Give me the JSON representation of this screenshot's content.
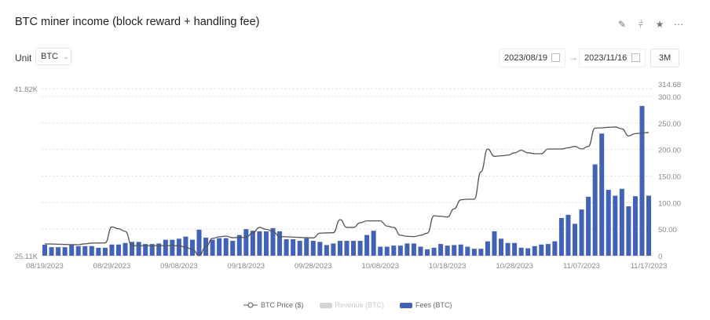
{
  "header": {
    "title": "BTC miner income (block reward + handling fee)",
    "icons": [
      "edit-icon",
      "split-icon",
      "star-icon",
      "more-icon"
    ]
  },
  "controls": {
    "unit_label": "Unit",
    "unit_value": "BTC",
    "start_date": "2023/08/19",
    "end_date": "2023/11/16",
    "range_button": "3M"
  },
  "legend": {
    "price": "BTC Price ($)",
    "revenue": "Revenue (BTC)",
    "fees": "Fees (BTC)"
  },
  "colors": {
    "fees": "#4262b8",
    "price": "#555555",
    "revenue_disabled": "#d4d4d4"
  },
  "chart_data": {
    "type": "bar+line",
    "grid": true,
    "legend_position": "bottom",
    "x_tick_labels": [
      "08/19/2023",
      "08/29/2023",
      "09/08/2023",
      "09/18/2023",
      "09/28/2023",
      "10/08/2023",
      "10/18/2023",
      "10/28/2023",
      "11/07/2023",
      "11/17/2023"
    ],
    "x_range": [
      "2023-08-19",
      "2023-11-17"
    ],
    "left_axis": {
      "min_label": "25.11K",
      "max_label": "41.82K",
      "ylim": [
        25110,
        41820
      ]
    },
    "right_axis": {
      "ylim": [
        0,
        314.68
      ],
      "tick_labels": [
        "0",
        "50.00",
        "100.00",
        "150.00",
        "200.00",
        "250.00",
        "300.00",
        "314.68"
      ]
    },
    "series": [
      {
        "name": "Fees (BTC)",
        "type": "bar",
        "axis": "right",
        "values": [
          20.6,
          16,
          16,
          16,
          21,
          18,
          18,
          18,
          15,
          15,
          21,
          21,
          24,
          26,
          26,
          22,
          22,
          23,
          30,
          30,
          32,
          36,
          30,
          49,
          34,
          30,
          33,
          33,
          28,
          39,
          50,
          47,
          46,
          46,
          52,
          46,
          31,
          31,
          28,
          33,
          28,
          26,
          20,
          23,
          28,
          28,
          28,
          28,
          39,
          47,
          17,
          17,
          19,
          19,
          23,
          23,
          17,
          12,
          15,
          22,
          19,
          20,
          21,
          17,
          13,
          13,
          27,
          46,
          32,
          24,
          24,
          15,
          14,
          18,
          21,
          22,
          27,
          71,
          77,
          60,
          87,
          111,
          172,
          230,
          124,
          113,
          126,
          93,
          112,
          282,
          113
        ]
      },
      {
        "name": "BTC Price ($)",
        "type": "line",
        "axis": "left",
        "values": [
          26290,
          26280,
          26260,
          26240,
          26220,
          26210,
          26300,
          26370,
          26380,
          26390,
          27990,
          27800,
          27540,
          26110,
          26110,
          26110,
          26110,
          26110,
          26110,
          26110,
          26110,
          25950,
          25740,
          25110,
          26000,
          26840,
          27000,
          27070,
          26910,
          26930,
          26940,
          27400,
          27940,
          27750,
          27540,
          27020,
          27000,
          26970,
          26940,
          26910,
          26890,
          27360,
          27390,
          27410,
          28720,
          27940,
          27940,
          28400,
          28590,
          28590,
          28590,
          28070,
          27940,
          27150,
          27050,
          27020,
          27150,
          27360,
          29100,
          29050,
          28980,
          29800,
          30700,
          30760,
          30760,
          33500,
          35780,
          35050,
          35100,
          35170,
          35400,
          35650,
          35400,
          35310,
          35310,
          35780,
          35780,
          35780,
          35900,
          36040,
          35780,
          36040,
          37870,
          37900,
          37950,
          37980,
          37800,
          37090,
          37320,
          37380,
          37430
        ]
      },
      {
        "name": "Revenue (BTC)",
        "type": "bar",
        "hidden": true
      }
    ]
  }
}
